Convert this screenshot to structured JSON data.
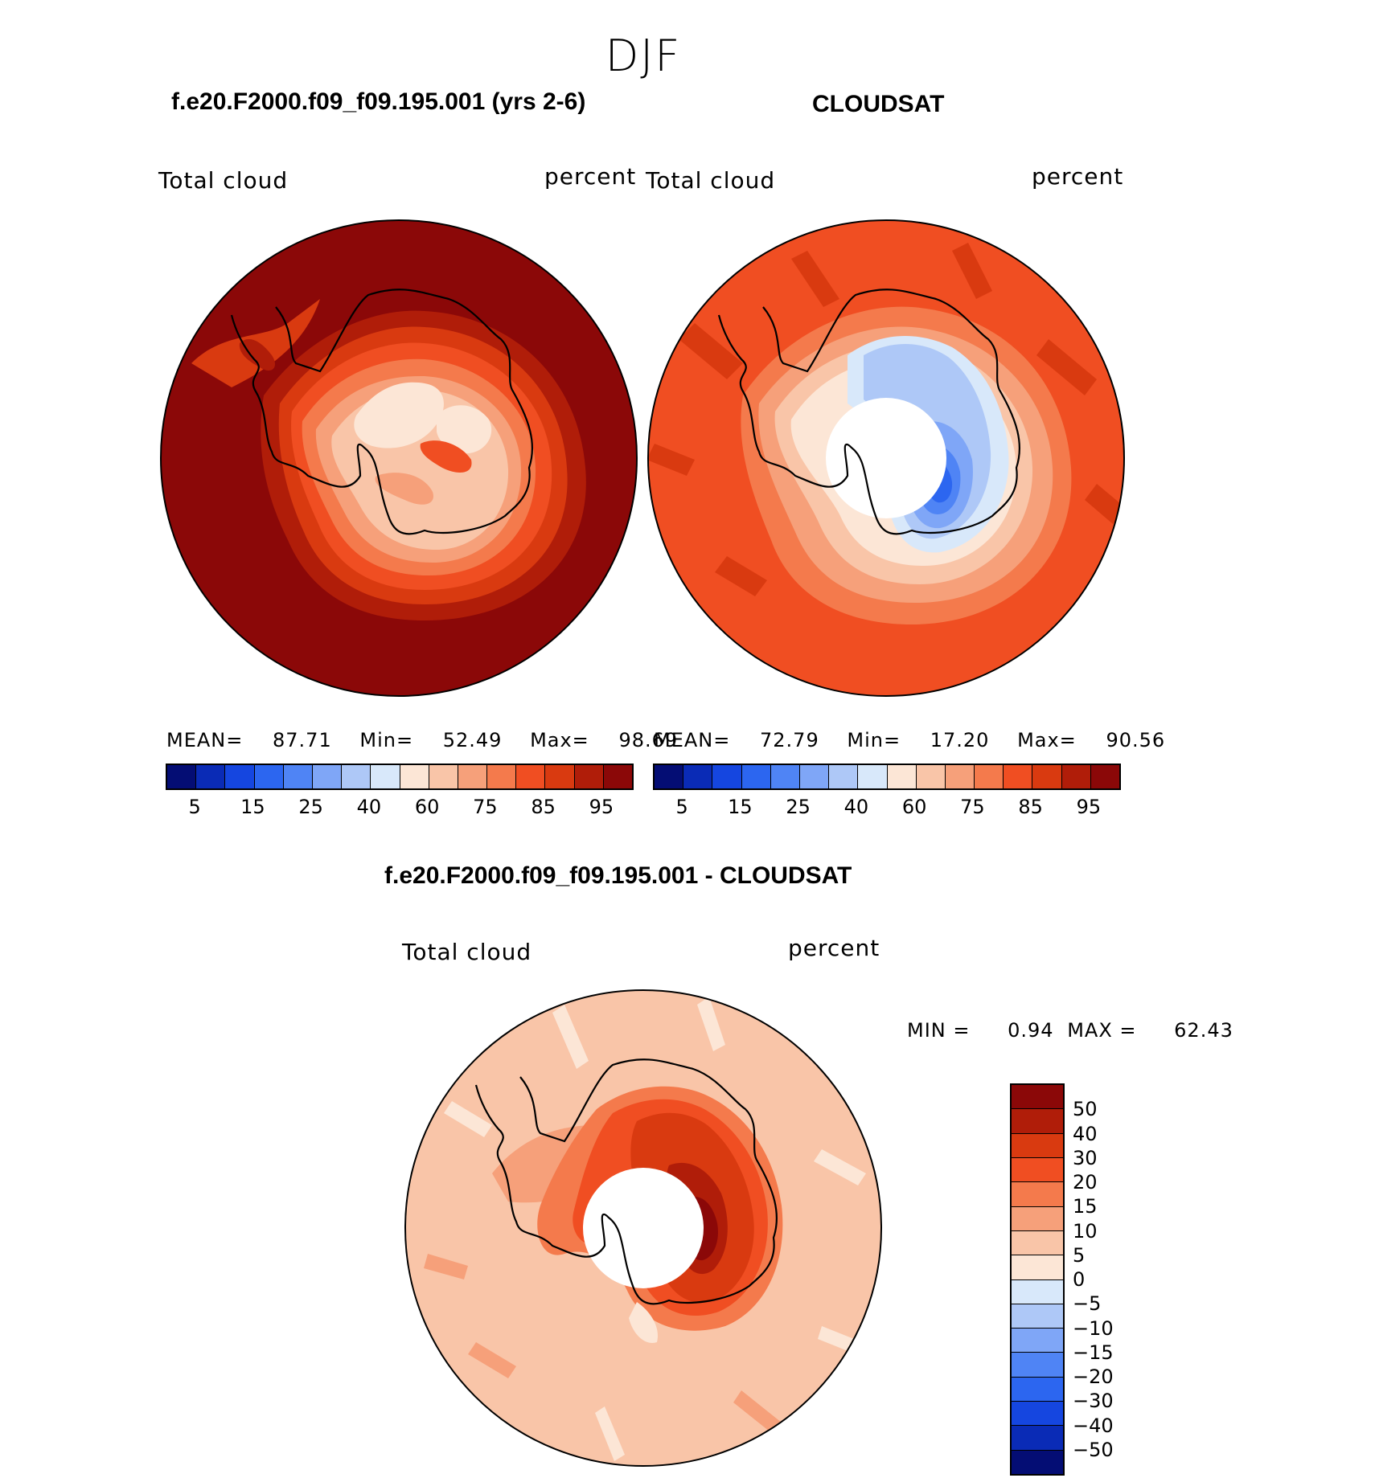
{
  "season": "DJF",
  "panels": {
    "model": {
      "title": "f.e20.F2000.f09_f09.195.001 (yrs 2-6)",
      "left_label": "Total cloud",
      "right_label": "percent",
      "stats": {
        "mean_label": "MEAN=",
        "mean": "87.71",
        "min_label": "Min=",
        "min": "52.49",
        "max_label": "Max=",
        "max": "98.69"
      }
    },
    "obs": {
      "title": "CLOUDSAT",
      "left_label": "Total cloud",
      "right_label": "percent",
      "stats": {
        "mean_label": "MEAN=",
        "mean": "72.79",
        "min_label": "Min=",
        "min": "17.20",
        "max_label": "Max=",
        "max": "90.56"
      }
    },
    "diff": {
      "title": "f.e20.F2000.f09_f09.195.001 - CLOUDSAT",
      "left_label": "Total cloud",
      "right_label": "percent",
      "min_label": "MIN =",
      "min": "0.94",
      "max_label": "MAX =",
      "max": "62.43"
    }
  },
  "colorbar_main": {
    "colors": [
      "#040d74",
      "#0a2bb6",
      "#1546e0",
      "#2c66f0",
      "#4f84f5",
      "#7fa6f7",
      "#aec8f7",
      "#d8e8fa",
      "#fce6d6",
      "#f9c5a8",
      "#f6a07a",
      "#f47a4c",
      "#f04e22",
      "#d93a10",
      "#b01d09",
      "#8b0808"
    ],
    "tick_labels": [
      "5",
      "15",
      "25",
      "40",
      "60",
      "75",
      "85",
      "95"
    ]
  },
  "colorbar_diff": {
    "colors": [
      "#8b0808",
      "#b01d09",
      "#d93a10",
      "#f04e22",
      "#f47a4c",
      "#f6a07a",
      "#f9c5a8",
      "#fce6d6",
      "#d8e8fa",
      "#aec8f7",
      "#7fa6f7",
      "#4f84f5",
      "#2c66f0",
      "#1546e0",
      "#0a2bb6",
      "#040d74"
    ],
    "tick_labels": [
      "50",
      "40",
      "30",
      "20",
      "15",
      "10",
      "5",
      "0",
      "−5",
      "−10",
      "−15",
      "−20",
      "−30",
      "−40",
      "−50"
    ]
  },
  "chart_data": [
    {
      "type": "map",
      "projection": "south-polar-stereographic",
      "title": "f.e20.F2000.f09_f09.195.001 (yrs 2-6)",
      "variable": "Total cloud",
      "units": "percent",
      "mean": 87.71,
      "min": 52.49,
      "max": 98.69,
      "levels": [
        5,
        10,
        15,
        20,
        25,
        30,
        40,
        50,
        60,
        65,
        70,
        75,
        80,
        85,
        90,
        95
      ]
    },
    {
      "type": "map",
      "projection": "south-polar-stereographic",
      "title": "CLOUDSAT",
      "variable": "Total cloud",
      "units": "percent",
      "mean": 72.79,
      "min": 17.2,
      "max": 90.56,
      "levels": [
        5,
        10,
        15,
        20,
        25,
        30,
        40,
        50,
        60,
        65,
        70,
        75,
        80,
        85,
        90,
        95
      ]
    },
    {
      "type": "map",
      "projection": "south-polar-stereographic",
      "title": "f.e20.F2000.f09_f09.195.001 - CLOUDSAT",
      "variable": "Total cloud",
      "units": "percent",
      "min": 0.94,
      "max": 62.43,
      "levels": [
        -50,
        -40,
        -30,
        -20,
        -15,
        -10,
        -5,
        0,
        5,
        10,
        15,
        20,
        30,
        40,
        50
      ]
    }
  ]
}
